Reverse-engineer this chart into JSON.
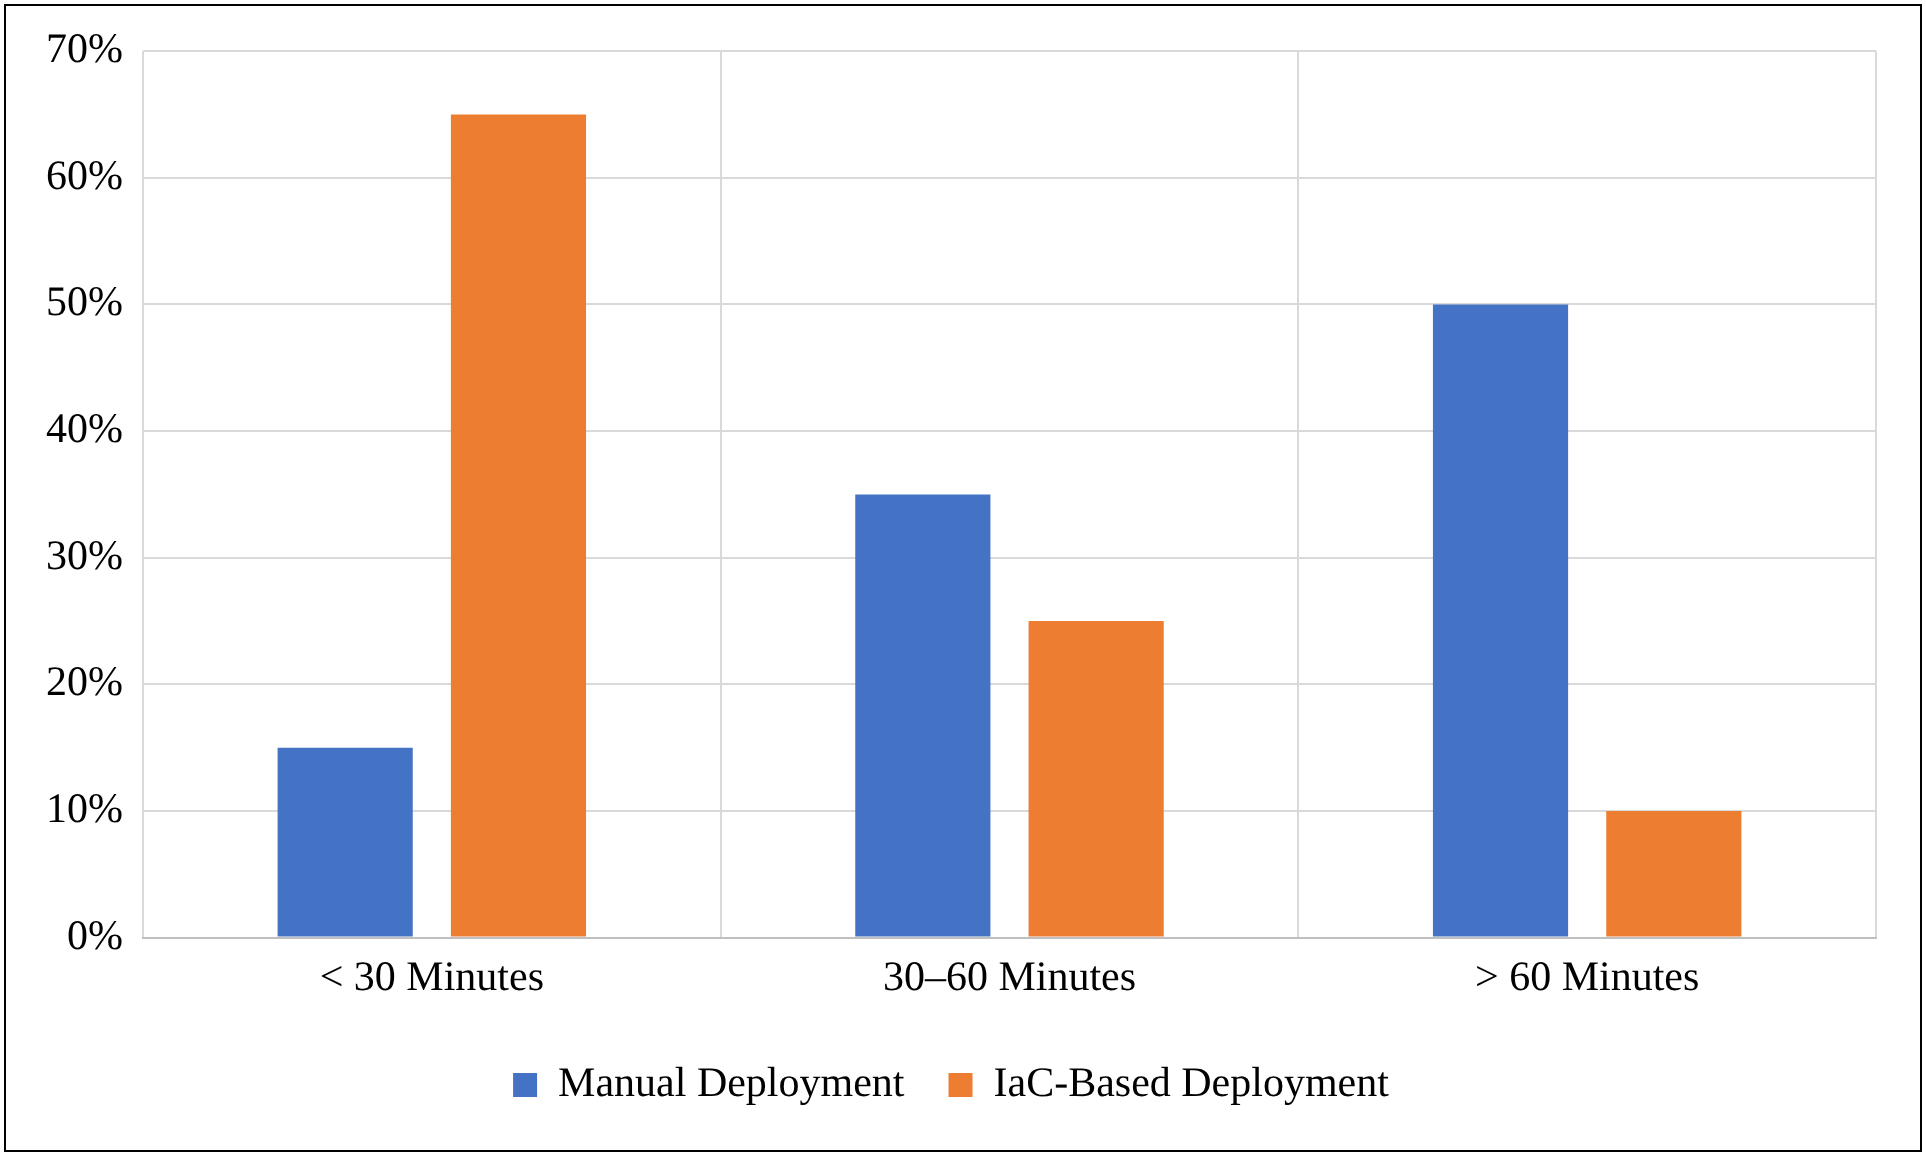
{
  "chart_data": {
    "type": "bar",
    "categories": [
      "< 30 Minutes",
      "30–60 Minutes",
      "> 60 Minutes"
    ],
    "series": [
      {
        "name": "Manual Deployment",
        "color": "#4472c4",
        "values": [
          15,
          35,
          50
        ]
      },
      {
        "name": "IaC-Based Deployment",
        "color": "#ed7d31",
        "values": [
          65,
          25,
          10
        ]
      }
    ],
    "ylim": [
      0,
      70
    ],
    "yticks": [
      {
        "value": 0,
        "label": "0%"
      },
      {
        "value": 10,
        "label": "10%"
      },
      {
        "value": 20,
        "label": "20%"
      },
      {
        "value": 30,
        "label": "30%"
      },
      {
        "value": 40,
        "label": "40%"
      },
      {
        "value": 50,
        "label": "50%"
      },
      {
        "value": 60,
        "label": "60%"
      },
      {
        "value": 70,
        "label": "70%"
      }
    ],
    "grid": true,
    "legend": "bottom"
  }
}
